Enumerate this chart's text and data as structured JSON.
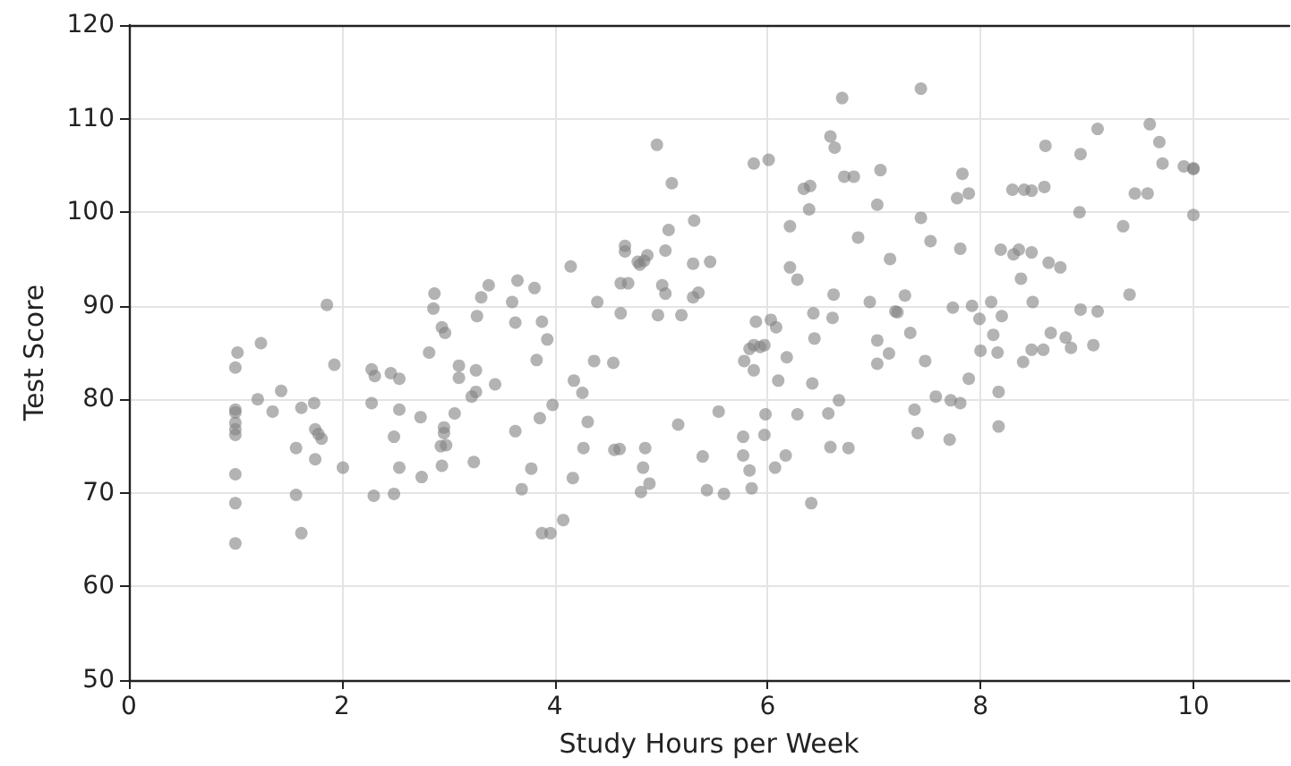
{
  "chart_data": {
    "type": "scatter",
    "xlabel": "Study Hours per Week",
    "ylabel": "Test Score",
    "xlim": [
      0,
      10.9
    ],
    "xticks": [
      0,
      2,
      4,
      6,
      8,
      10
    ],
    "ylim": [
      50,
      120
    ],
    "yticks": [
      50,
      60,
      70,
      80,
      90,
      100,
      110,
      120
    ],
    "grid": true,
    "marker": "circle",
    "series": [
      {
        "color": "#808080",
        "x": [
          1.02,
          1,
          1,
          1,
          1,
          1,
          1,
          1,
          1,
          1,
          1.24,
          1.21,
          1.35,
          1.43,
          1.57,
          1.57,
          1.62,
          1.62,
          1.74,
          1.75,
          1.78,
          1.81,
          1.75,
          1.86,
          1.93,
          2.01,
          2.28,
          2.31,
          2.46,
          2.54,
          2.28,
          2.54,
          2.49,
          2.74,
          2.54,
          2.3,
          2.49,
          2.75,
          2.82,
          2.87,
          2.86,
          2.94,
          2.97,
          3.1,
          3.1,
          3.26,
          3.22,
          3.26,
          3.06,
          2.96,
          2.96,
          2.93,
          2.98,
          2.94,
          3.24,
          3.44,
          3.27,
          3.31,
          3.38,
          3.6,
          3.65,
          3.81,
          3.63,
          3.63,
          3.78,
          3.69,
          6.7,
          6.59,
          6.63,
          5.87,
          6.01,
          4.96,
          5.1,
          6.34,
          6.4,
          6.72,
          6.81,
          6.39,
          5.31,
          5.07,
          6.21,
          6.85,
          4.66,
          4.66,
          5.04,
          4.87,
          4.78,
          4.84,
          4.8,
          4.15,
          5.3,
          5.46,
          6.21,
          6.28,
          4.62,
          4.69,
          5.01,
          5.04,
          5.3,
          5.35,
          4.4,
          4.62,
          4.97,
          5.19,
          6.62,
          6.96,
          6.43,
          6.61,
          5.89,
          6.03,
          6.08,
          3.88,
          3.93,
          3.83,
          5.83,
          5.87,
          5.93,
          5.97,
          5.78,
          5.87,
          6.18,
          6.44,
          4.37,
          4.55,
          6.1,
          6.42,
          4.18,
          4.26,
          3.98,
          3.86,
          4.31,
          5.54,
          5.16,
          5.98,
          6.28,
          6.57,
          6.67,
          4.27,
          4.56,
          4.61,
          4.85,
          5.77,
          5.97,
          6.59,
          6.76,
          5.39,
          5.77,
          6.17,
          4.83,
          4.89,
          4.81,
          5.83,
          6.07,
          5.43,
          5.59,
          5.85,
          6.41,
          4.17,
          4.08,
          3.88,
          3.96,
          7.44,
          7.06,
          7.03,
          7.83,
          7.78,
          7.89,
          7.44,
          7.53,
          7.81,
          7.15,
          7.29,
          7.2,
          7.22,
          7.74,
          7.92,
          8.1,
          7.99,
          8.2,
          7.34,
          7.14,
          7.03,
          7.03,
          7.48,
          8.12,
          8,
          8.16,
          7.89,
          7.58,
          7.72,
          7.81,
          7.38,
          8.17,
          7.41,
          7.71,
          8.17,
          8.3,
          8.41,
          8.48,
          8.6,
          8.61,
          8.94,
          9.1,
          8.93,
          9.34,
          8.19,
          8.31,
          8.36,
          8.48,
          8.64,
          8.75,
          8.38,
          8.49,
          8.94,
          9.1,
          9.4,
          8.66,
          8.8,
          8.85,
          9.06,
          8.48,
          8.59,
          8.4,
          9.45,
          9.57,
          9.59,
          9.68,
          9.71,
          9.91,
          10,
          10,
          10
        ],
        "values": [
          85,
          83.4,
          78.9,
          78.6,
          77.5,
          76.8,
          76.2,
          72,
          68.9,
          64.6,
          86,
          80,
          78.7,
          80.9,
          74.8,
          69.8,
          65.7,
          79.1,
          79.6,
          76.8,
          76.3,
          75.8,
          73.6,
          90.1,
          83.7,
          72.7,
          83.2,
          82.5,
          82.8,
          82.2,
          79.6,
          78.9,
          76,
          78.1,
          72.7,
          69.7,
          69.9,
          71.7,
          85,
          91.3,
          89.7,
          87.7,
          87.1,
          83.6,
          82.3,
          83.1,
          80.3,
          80.8,
          78.5,
          77,
          76.4,
          75,
          75.1,
          72.9,
          73.3,
          81.6,
          88.9,
          90.9,
          92.2,
          90.4,
          92.7,
          91.9,
          88.2,
          76.6,
          72.6,
          70.4,
          112.2,
          108.1,
          106.9,
          105.2,
          105.6,
          107.2,
          103.1,
          102.5,
          102.8,
          103.8,
          103.8,
          100.3,
          99.1,
          98.1,
          98.5,
          97.3,
          96.4,
          95.8,
          95.9,
          95.4,
          94.7,
          94.8,
          94.4,
          94.2,
          94.5,
          94.7,
          94.1,
          92.8,
          92.4,
          92.4,
          92.2,
          91.3,
          90.9,
          91.4,
          90.4,
          89.2,
          89,
          89,
          91.2,
          90.4,
          89.2,
          88.7,
          88.3,
          88.5,
          87.7,
          88.3,
          86.4,
          84.2,
          85.4,
          85.8,
          85.6,
          85.8,
          84.1,
          83.1,
          84.5,
          86.5,
          84.1,
          83.9,
          82,
          81.7,
          82,
          80.7,
          79.4,
          78,
          77.6,
          78.7,
          77.3,
          78.4,
          78.4,
          78.5,
          79.9,
          74.8,
          74.6,
          74.7,
          74.8,
          76,
          76.2,
          74.9,
          74.8,
          73.9,
          74,
          74,
          72.7,
          71,
          70.1,
          72.4,
          72.7,
          70.3,
          69.9,
          70.5,
          68.9,
          71.6,
          67.1,
          65.7,
          65.7,
          113.2,
          104.5,
          100.8,
          104.1,
          101.5,
          102,
          99.4,
          96.9,
          96.1,
          95,
          91.1,
          89.4,
          89.3,
          89.8,
          90,
          90.4,
          88.6,
          88.9,
          87.1,
          84.9,
          86.3,
          83.8,
          84.1,
          86.9,
          85.2,
          85,
          82.2,
          80.3,
          79.9,
          79.6,
          78.9,
          80.8,
          76.4,
          75.7,
          77.1,
          102.4,
          102.4,
          102.3,
          102.7,
          107.1,
          106.2,
          108.9,
          100,
          98.5,
          96,
          95.5,
          96,
          95.7,
          94.6,
          94.1,
          92.9,
          90.4,
          89.6,
          89.4,
          91.2,
          87.1,
          86.6,
          85.5,
          85.8,
          85.3,
          85.3,
          84,
          102,
          102,
          109.4,
          107.5,
          105.2,
          104.9,
          104.7,
          104.6,
          99.7
        ]
      }
    ]
  }
}
